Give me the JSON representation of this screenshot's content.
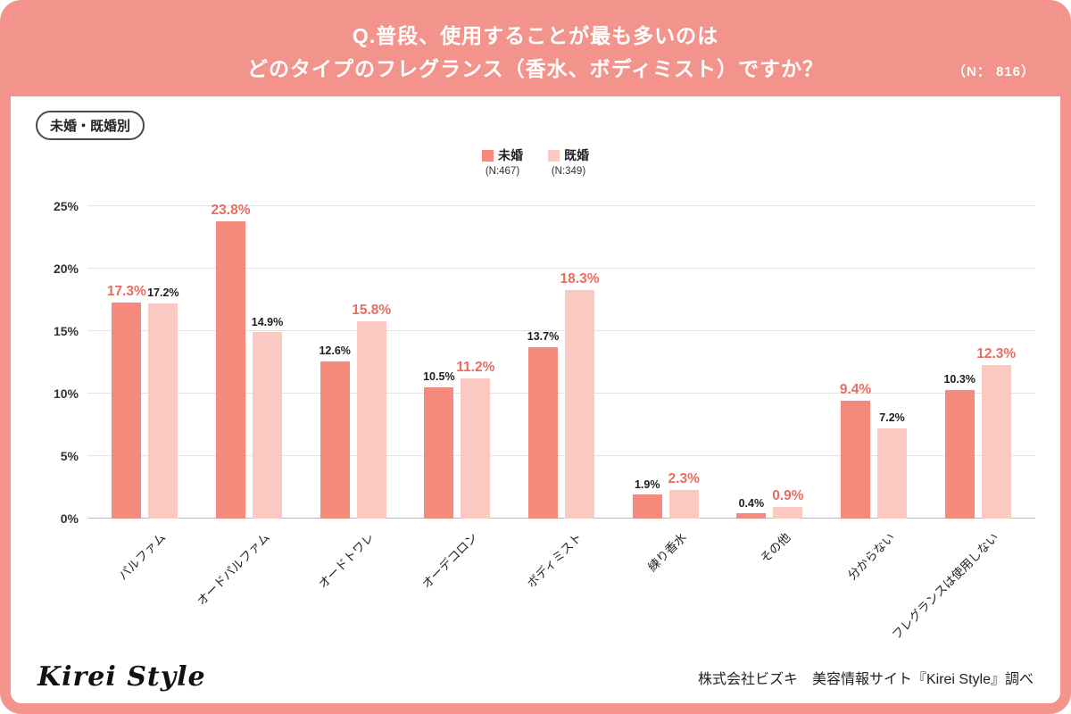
{
  "colors": {
    "frame": "#F2938C",
    "series_unmarried": "#F5897B",
    "series_married": "#FACAC2",
    "highlight_label": "#E96C5F"
  },
  "header": {
    "title_line1": "Q.普段、使用することが最も多いのは",
    "title_line2": "どのタイプのフレグランス（香水、ボディミスト）ですか？",
    "n_label": "（N： 816）"
  },
  "badge": "未婚・既婚別",
  "legend": {
    "series1": {
      "label": "未婚",
      "n": "(N:467)"
    },
    "series2": {
      "label": "既婚",
      "n": "(N:349)"
    }
  },
  "chart_data": {
    "type": "bar",
    "title": "Q.普段、使用することが最も多いのはどのタイプのフレグランス（香水、ボディミスト）ですか？",
    "categories": [
      "パルファム",
      "オードパルファム",
      "オードトワレ",
      "オーデコロン",
      "ボディミスト",
      "練り香水",
      "その他",
      "分からない",
      "フレグランスは使用しない"
    ],
    "series": [
      {
        "name": "未婚",
        "n": 467,
        "values": [
          17.3,
          23.8,
          12.6,
          10.5,
          13.7,
          1.9,
          0.4,
          9.4,
          10.3
        ]
      },
      {
        "name": "既婚",
        "n": 349,
        "values": [
          17.2,
          14.9,
          15.8,
          11.2,
          18.3,
          2.3,
          0.9,
          7.2,
          12.3
        ]
      }
    ],
    "value_labels": [
      [
        "17.3%",
        "17.2%"
      ],
      [
        "23.8%",
        "14.9%"
      ],
      [
        "12.6%",
        "15.8%"
      ],
      [
        "10.5%",
        "11.2%"
      ],
      [
        "13.7%",
        "18.3%"
      ],
      [
        "1.9%",
        "2.3%"
      ],
      [
        "0.4%",
        "0.9%"
      ],
      [
        "9.4%",
        "7.2%"
      ],
      [
        "10.3%",
        "12.3%"
      ]
    ],
    "emphasized_series_per_category": [
      0,
      0,
      1,
      1,
      1,
      1,
      1,
      0,
      1
    ],
    "ylim": [
      0,
      25
    ],
    "yticks": [
      "0%",
      "5%",
      "10%",
      "15%",
      "20%",
      "25%"
    ],
    "grid": true,
    "legend_position": "top-center"
  },
  "footer": {
    "logo": "Kirei Style",
    "credit": "株式会社ビズキ　美容情報サイト『Kirei Style』調べ"
  }
}
